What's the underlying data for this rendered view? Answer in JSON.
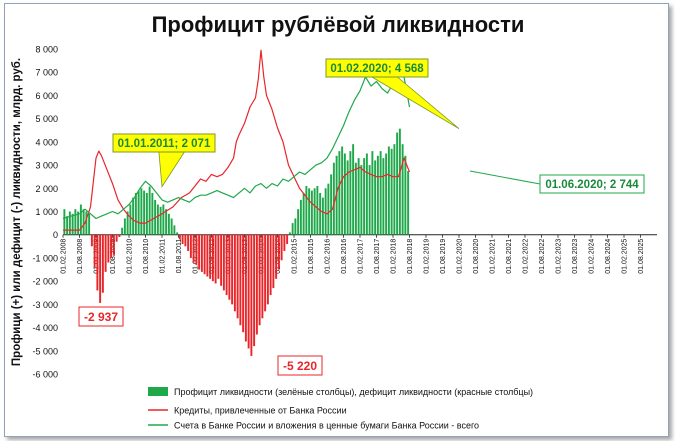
{
  "chart_data": {
    "type": "bar",
    "title": "Профицит рублёвой ликвидности",
    "ylabel": "Профици (+) или дефицит (-) ликвидности, млрд. руб.",
    "xlabel": "",
    "ylim": [
      -6000,
      8000
    ],
    "y_ticks": [
      8000,
      7000,
      6000,
      5000,
      4000,
      3000,
      2000,
      1000,
      0,
      -1000,
      -2000,
      -3000,
      -4000,
      -5000,
      -6000
    ],
    "y_tick_labels": [
      "8 000",
      "7 000",
      "6 000",
      "5 000",
      "4 000",
      "3 000",
      "2 000",
      "1 000",
      "0",
      "-1 000",
      "-2 000",
      "-3 000",
      "-4 000",
      "-5 000",
      "-6 000"
    ],
    "x_tick_labels": [
      "01.02.2008",
      "01.08.2008",
      "01.02.2009",
      "01.08.2009",
      "01.02.2010",
      "01.08.2010",
      "01.02.2011",
      "01.08.2011",
      "01.02.2012",
      "01.08.2012",
      "01.02.2013",
      "01.08.2013",
      "01.02.2014",
      "01.08.2014",
      "01.02.2015",
      "01.08.2015",
      "01.02.2016",
      "01.08.2016",
      "01.02.2017",
      "01.08.2017",
      "01.02.2018",
      "01.08.2018",
      "01.02.2019",
      "01.08.2019",
      "01.02.2020",
      "01.08.2020",
      "01.02.2021",
      "01.08.2021",
      "01.02.2022",
      "01.08.2022",
      "01.02.2023",
      "01.08.2023",
      "01.02.2024",
      "01.08.2024",
      "01.02.2025",
      "01.08.2025"
    ],
    "month_start": [
      2008,
      1
    ],
    "months_total": 216,
    "bars": {
      "name": "Профицит ликвидности (зелёные столбцы), дефицит ликвидности (красные столбцы)",
      "start_month_index": 0,
      "positive_color": "#1fa84a",
      "negative_color": "#e8262a",
      "values": [
        1100,
        800,
        1000,
        900,
        1100,
        1000,
        1300,
        1100,
        1000,
        900,
        -500,
        -1400,
        -2400,
        -2937,
        -2500,
        -1600,
        -1200,
        -1000,
        -900,
        -300,
        -100,
        300,
        700,
        1000,
        1300,
        1600,
        1800,
        1900,
        2000,
        1900,
        1800,
        2071,
        1800,
        1500,
        1300,
        1200,
        1300,
        1100,
        900,
        700,
        400,
        100,
        -200,
        -400,
        -500,
        -700,
        -1000,
        -1200,
        -1300,
        -1500,
        -1600,
        -1700,
        -1800,
        -1900,
        -2000,
        -2100,
        -1900,
        -2200,
        -2400,
        -2600,
        -2800,
        -3000,
        -3300,
        -3600,
        -3900,
        -4200,
        -4600,
        -4900,
        -5220,
        -4800,
        -4300,
        -3900,
        -3600,
        -3300,
        -3000,
        -2600,
        -2300,
        -1900,
        -1500,
        -1100,
        -700,
        -400,
        100,
        500,
        700,
        1100,
        1500,
        1800,
        2100,
        2000,
        1900,
        2000,
        2100,
        1800,
        1600,
        2000,
        2200,
        2600,
        3100,
        3400,
        3600,
        3800,
        3500,
        3200,
        3600,
        3900,
        3100,
        3300,
        3000,
        3300,
        3500,
        3000,
        3600,
        3200,
        3400,
        3600,
        3300,
        3500,
        3800,
        3700,
        3900,
        4400,
        4568,
        3900,
        3400,
        2744
      ]
    },
    "series": [
      {
        "name": "Кредиты, привлеченные от Банка России",
        "color": "#e8262a",
        "points": [
          [
            0,
            200
          ],
          [
            6,
            200
          ],
          [
            8,
            500
          ],
          [
            10,
            1200
          ],
          [
            12,
            3300
          ],
          [
            13,
            3600
          ],
          [
            14,
            3400
          ],
          [
            16,
            2800
          ],
          [
            18,
            2200
          ],
          [
            20,
            1500
          ],
          [
            22,
            1100
          ],
          [
            24,
            800
          ],
          [
            26,
            600
          ],
          [
            28,
            500
          ],
          [
            30,
            500
          ],
          [
            33,
            700
          ],
          [
            36,
            900
          ],
          [
            40,
            1200
          ],
          [
            43,
            1600
          ],
          [
            46,
            1800
          ],
          [
            48,
            2100
          ],
          [
            50,
            2400
          ],
          [
            52,
            2300
          ],
          [
            54,
            2600
          ],
          [
            56,
            2500
          ],
          [
            58,
            2600
          ],
          [
            60,
            2900
          ],
          [
            62,
            3300
          ],
          [
            63,
            4000
          ],
          [
            64,
            4300
          ],
          [
            66,
            4800
          ],
          [
            68,
            5500
          ],
          [
            70,
            5900
          ],
          [
            71,
            6700
          ],
          [
            72,
            7950
          ],
          [
            73,
            6800
          ],
          [
            74,
            6000
          ],
          [
            76,
            5400
          ],
          [
            78,
            4600
          ],
          [
            80,
            4000
          ],
          [
            82,
            3000
          ],
          [
            84,
            2500
          ],
          [
            86,
            2000
          ],
          [
            88,
            1700
          ],
          [
            90,
            1400
          ],
          [
            92,
            1200
          ],
          [
            94,
            1000
          ],
          [
            96,
            900
          ],
          [
            98,
            1100
          ],
          [
            100,
            2000
          ],
          [
            102,
            2500
          ],
          [
            104,
            2700
          ],
          [
            106,
            2800
          ],
          [
            108,
            2900
          ],
          [
            110,
            2700
          ],
          [
            112,
            2600
          ],
          [
            114,
            2500
          ],
          [
            116,
            2500
          ],
          [
            118,
            2600
          ],
          [
            120,
            2500
          ],
          [
            122,
            2500
          ],
          [
            124,
            3300
          ],
          [
            126,
            2700
          ]
        ]
      },
      {
        "name": "Счета в Банке России и вложения в ценные бумаги Банка России - всего",
        "color": "#1fa84a",
        "points": [
          [
            0,
            700
          ],
          [
            3,
            800
          ],
          [
            6,
            900
          ],
          [
            8,
            1100
          ],
          [
            10,
            900
          ],
          [
            12,
            700
          ],
          [
            14,
            800
          ],
          [
            16,
            900
          ],
          [
            18,
            1000
          ],
          [
            20,
            900
          ],
          [
            22,
            1100
          ],
          [
            24,
            1300
          ],
          [
            26,
            1600
          ],
          [
            28,
            2000
          ],
          [
            30,
            2300
          ],
          [
            32,
            2100
          ],
          [
            34,
            1800
          ],
          [
            36,
            1500
          ],
          [
            38,
            1400
          ],
          [
            40,
            1500
          ],
          [
            42,
            1600
          ],
          [
            44,
            1500
          ],
          [
            46,
            1400
          ],
          [
            48,
            1600
          ],
          [
            50,
            1700
          ],
          [
            52,
            1700
          ],
          [
            54,
            1800
          ],
          [
            56,
            1900
          ],
          [
            58,
            1800
          ],
          [
            60,
            1700
          ],
          [
            62,
            1600
          ],
          [
            64,
            1800
          ],
          [
            66,
            2000
          ],
          [
            68,
            1800
          ],
          [
            70,
            2100
          ],
          [
            72,
            2200
          ],
          [
            74,
            2000
          ],
          [
            76,
            2200
          ],
          [
            78,
            2100
          ],
          [
            80,
            2400
          ],
          [
            82,
            2300
          ],
          [
            84,
            2500
          ],
          [
            86,
            2700
          ],
          [
            88,
            2600
          ],
          [
            90,
            2800
          ],
          [
            92,
            3000
          ],
          [
            94,
            3100
          ],
          [
            96,
            3300
          ],
          [
            98,
            3700
          ],
          [
            100,
            4200
          ],
          [
            102,
            4700
          ],
          [
            104,
            5300
          ],
          [
            106,
            5800
          ],
          [
            108,
            6200
          ],
          [
            110,
            6800
          ],
          [
            112,
            6400
          ],
          [
            114,
            6600
          ],
          [
            116,
            6300
          ],
          [
            118,
            6100
          ],
          [
            120,
            6500
          ],
          [
            122,
            7000
          ],
          [
            124,
            6800
          ],
          [
            126,
            5500
          ]
        ]
      }
    ],
    "annotations": [
      {
        "text": "01.01.2011; 2 071",
        "month_index": 36,
        "value": 2071,
        "style": "yellow"
      },
      {
        "text": "01.02.2020; 4 568",
        "month_index": 144,
        "value": 4568,
        "style": "yellow"
      },
      {
        "text": "01.06.2020; 2 744",
        "month_index": 148,
        "value": 2744,
        "style": "green"
      },
      {
        "text": "-2 937",
        "month_index": 12,
        "value": -2937,
        "style": "red"
      },
      {
        "text": "-5 220",
        "month_index": 80,
        "value": -5220,
        "style": "red"
      }
    ],
    "legend_position": "bottom"
  }
}
